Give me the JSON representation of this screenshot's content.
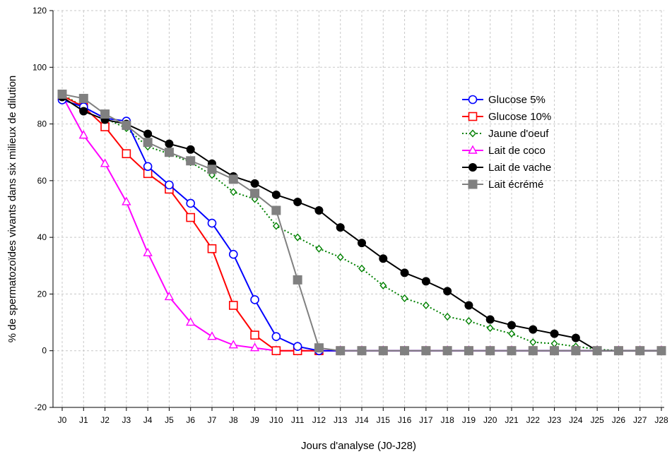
{
  "chart_data": {
    "type": "line",
    "title": "",
    "xlabel": "Jours d'analyse (J0-J28)",
    "ylabel": "% de spermatozoïdes vivants dans six milieux de dilution",
    "ylim": [
      -20,
      120
    ],
    "yticks": [
      -20,
      0,
      20,
      40,
      60,
      80,
      100,
      120
    ],
    "grid": true,
    "legend_position": "right",
    "categories": [
      "J0",
      "J1",
      "J2",
      "J3",
      "J4",
      "J5",
      "J6",
      "J7",
      "J8",
      "J9",
      "J10",
      "J11",
      "J12",
      "J13",
      "J14",
      "J15",
      "J16",
      "J17",
      "J18",
      "J19",
      "J20",
      "J21",
      "J22",
      "J23",
      "J24",
      "J25",
      "J26",
      "J27",
      "J28"
    ],
    "series": [
      {
        "name": "Glucose 5%",
        "color": "#0000ff",
        "dash": "solid",
        "marker": "circle-open",
        "values": [
          88.5,
          86,
          82,
          81,
          65,
          58.5,
          52,
          45,
          34,
          18,
          5,
          1.5,
          0,
          0,
          0,
          0,
          0,
          0,
          0,
          0,
          0,
          0,
          0,
          0,
          0,
          0,
          0,
          0,
          0
        ]
      },
      {
        "name": "Glucose 10%",
        "color": "#ff0000",
        "dash": "solid",
        "marker": "square-open",
        "values": [
          90,
          86,
          79,
          69.5,
          62.5,
          57,
          47,
          36,
          16,
          5.5,
          0,
          0,
          0,
          0,
          0,
          0,
          0,
          0,
          0,
          0,
          0,
          0,
          0,
          0,
          0,
          0,
          0,
          0,
          0
        ]
      },
      {
        "name": "Jaune d'oeuf",
        "color": "#008000",
        "dash": "dotted",
        "marker": "diamond-open",
        "values": [
          90.5,
          86,
          82,
          78.5,
          72,
          69.5,
          66.5,
          62,
          56,
          53.5,
          44,
          40,
          36,
          33,
          29,
          23,
          18.5,
          16,
          12,
          10.5,
          8,
          6,
          3,
          2.5,
          1.5,
          0.5,
          0,
          0,
          0
        ]
      },
      {
        "name": "Lait de coco",
        "color": "#ff00ff",
        "dash": "solid",
        "marker": "triangle-open",
        "values": [
          90,
          76,
          66,
          52.5,
          34.5,
          19,
          10,
          5,
          2,
          1,
          0,
          0,
          0,
          0,
          0,
          0,
          0,
          0,
          0,
          0,
          0,
          0,
          0,
          0,
          0,
          0,
          0,
          0,
          0
        ]
      },
      {
        "name": "Lait de vache",
        "color": "#000000",
        "dash": "solid",
        "marker": "circle-filled",
        "values": [
          89.5,
          84.5,
          81.5,
          80,
          76.5,
          73,
          71,
          66,
          61.5,
          59,
          55,
          52.5,
          49.5,
          43.5,
          38,
          32.5,
          27.5,
          24.5,
          21,
          16,
          11,
          9,
          7.5,
          6,
          4.5,
          0,
          0,
          0,
          0
        ]
      },
      {
        "name": "Lait écrémé",
        "color": "#808080",
        "dash": "solid",
        "marker": "square-filled",
        "values": [
          90.5,
          89,
          83.5,
          79.5,
          73.5,
          70,
          67,
          64,
          60.5,
          55.5,
          49.5,
          25,
          1,
          0,
          0,
          0,
          0,
          0,
          0,
          0,
          0,
          0,
          0,
          0,
          0,
          0,
          0,
          0,
          0
        ]
      }
    ]
  }
}
